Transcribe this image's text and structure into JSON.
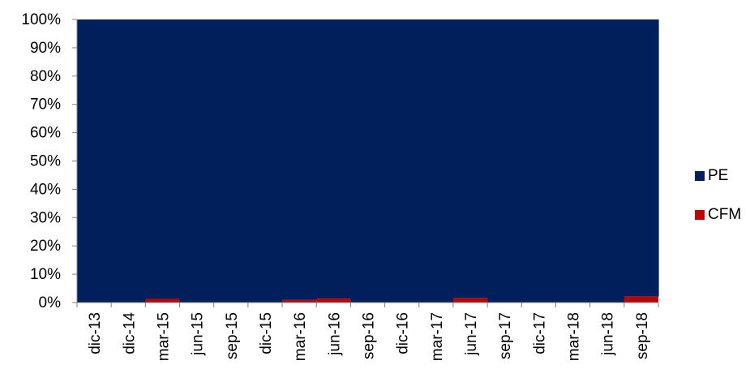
{
  "chart_data": {
    "type": "area",
    "stacked_percent": true,
    "categories": [
      "dic-13",
      "dic-14",
      "mar-15",
      "jun-15",
      "sep-15",
      "dic-15",
      "mar-16",
      "jun-16",
      "sep-16",
      "dic-16",
      "mar-17",
      "jun-17",
      "sep-17",
      "dic-17",
      "mar-18",
      "jun-18",
      "sep-18"
    ],
    "series": [
      {
        "name": "PE",
        "color": "#001F5B",
        "values": [
          100,
          100,
          98.7,
          100,
          100,
          100,
          99.1,
          98.6,
          100,
          100,
          100,
          98.5,
          100,
          100,
          100,
          100,
          97.9
        ]
      },
      {
        "name": "CFM",
        "color": "#C00000",
        "values": [
          0,
          0,
          1.3,
          0,
          0,
          0,
          0.9,
          1.4,
          0,
          0,
          0,
          1.5,
          0,
          0,
          0,
          0,
          2.1
        ]
      }
    ],
    "y_ticks": [
      "0%",
      "10%",
      "20%",
      "30%",
      "40%",
      "50%",
      "60%",
      "70%",
      "80%",
      "90%",
      "100%"
    ],
    "ylim": [
      0,
      100
    ],
    "legend_position": "right",
    "grid": false
  },
  "legend": {
    "items": [
      {
        "label": "PE",
        "color": "#001F5B"
      },
      {
        "label": "CFM",
        "color": "#C00000"
      }
    ]
  }
}
